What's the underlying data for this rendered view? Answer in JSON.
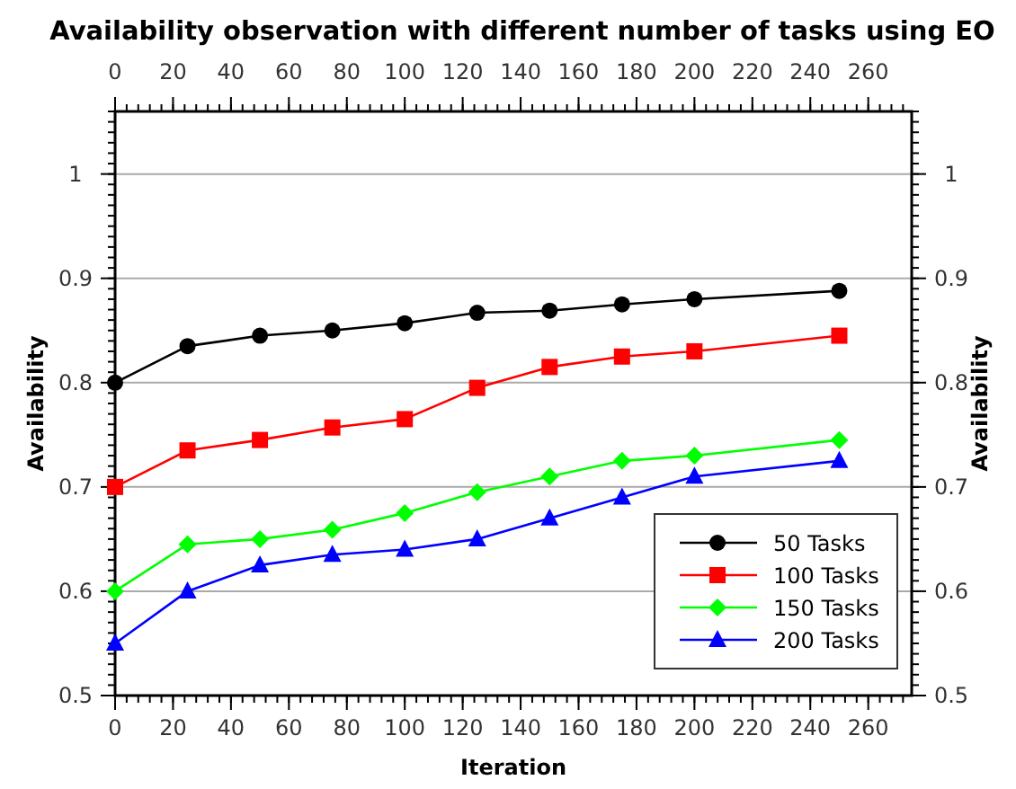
{
  "chart_data": {
    "type": "line",
    "title": "Availability observation with different number of tasks using EO",
    "xlabel": "Iteration",
    "ylabel": "Availability",
    "y2label": "Availability",
    "x": [
      0,
      25,
      50,
      75,
      100,
      125,
      150,
      175,
      200,
      250
    ],
    "series": [
      {
        "name": "50 Tasks",
        "color": "#000000",
        "marker": "circle",
        "values": [
          0.8,
          0.835,
          0.845,
          0.85,
          0.857,
          0.867,
          0.869,
          0.875,
          0.88,
          0.888
        ]
      },
      {
        "name": "100 Tasks",
        "color": "#ff0000",
        "marker": "square",
        "values": [
          0.7,
          0.735,
          0.745,
          0.757,
          0.765,
          0.795,
          0.815,
          0.825,
          0.83,
          0.845
        ]
      },
      {
        "name": "150 Tasks",
        "color": "#00ff00",
        "marker": "diamond",
        "values": [
          0.6,
          0.645,
          0.65,
          0.659,
          0.675,
          0.695,
          0.71,
          0.725,
          0.73,
          0.745
        ]
      },
      {
        "name": "200 Tasks",
        "color": "#0000ff",
        "marker": "triangle",
        "values": [
          0.55,
          0.6,
          0.625,
          0.635,
          0.64,
          0.65,
          0.67,
          0.69,
          0.71,
          0.725
        ]
      }
    ],
    "xlim": [
      0,
      275
    ],
    "xticks": [
      0,
      20,
      40,
      60,
      80,
      100,
      120,
      140,
      160,
      180,
      200,
      220,
      240,
      260
    ],
    "x2lim": [
      0,
      275
    ],
    "x2ticks": [
      0,
      20,
      40,
      60,
      80,
      100,
      120,
      140,
      160,
      180,
      200,
      220,
      240,
      260
    ],
    "ylim": [
      0.5,
      1.06
    ],
    "yticks": [
      0.5,
      0.6,
      0.7,
      0.8,
      0.9,
      1
    ],
    "y2lim": [
      0.5,
      1.06
    ],
    "y2ticks": [
      0.5,
      0.6,
      0.7,
      0.8,
      0.9,
      1
    ],
    "grid": "y",
    "legend": "bottom right",
    "line_style": "solid"
  }
}
